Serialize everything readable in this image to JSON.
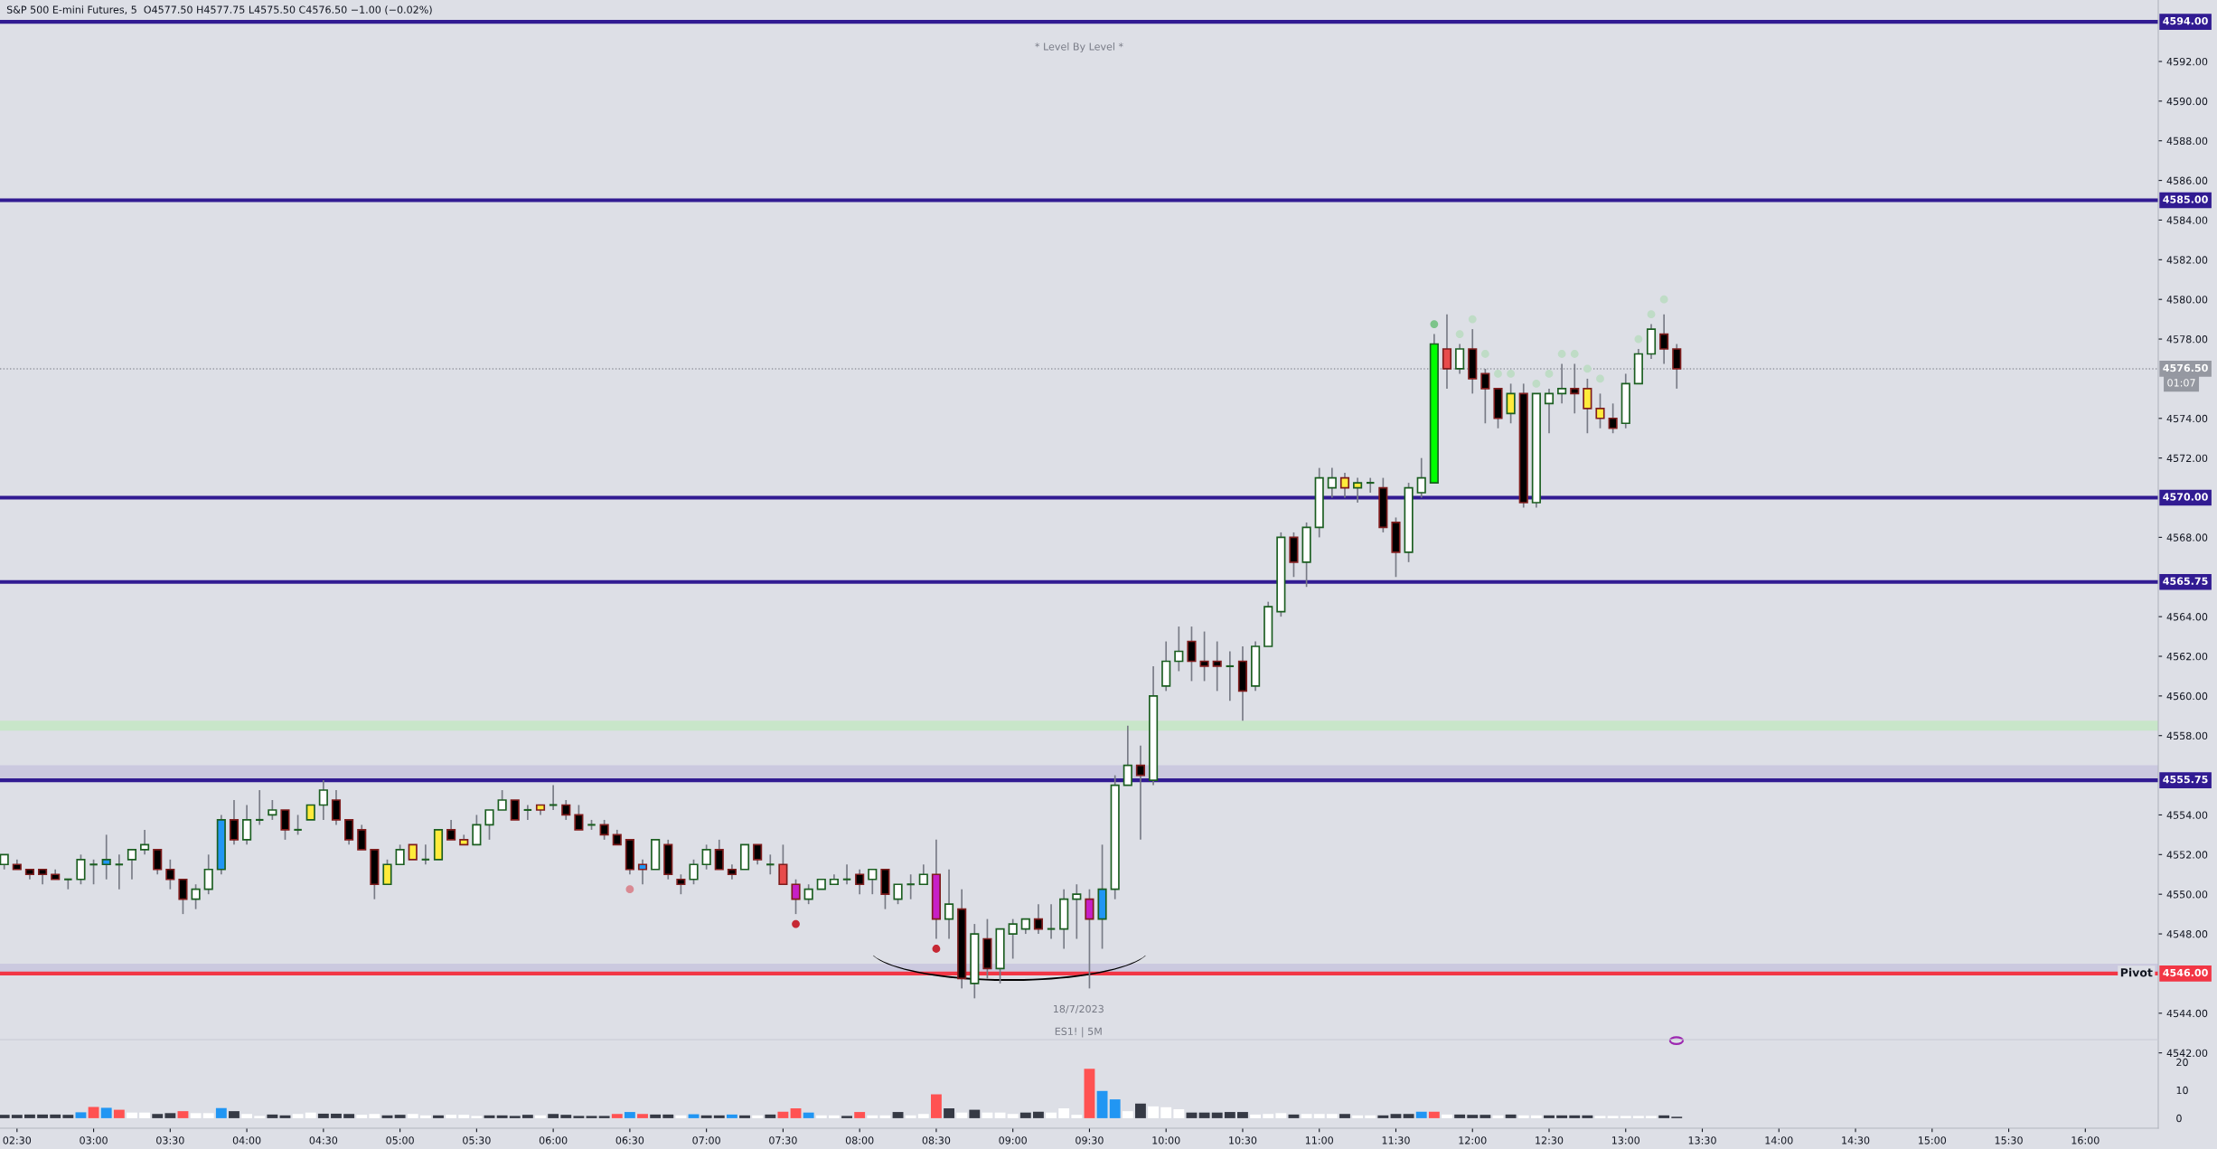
{
  "chart_data": [
    {
      "type": "candlestick",
      "subtitle": "* Level By Level *",
      "annotations": [
        "S&P 500 E-mini Futures, 5  O4577.50 H4577.75 L4575.50 C4576.50 −1.00 (−0.02%)",
        "18/7/2023",
        "ES1! | 5M",
        "01:07",
        {
          "text": "Pivot",
          "x": 16.44,
          "y": 4546
        }
      ],
      "x": [
        2.4167,
        2.5,
        2.5833,
        2.6667,
        2.75,
        2.8333,
        2.9167,
        3,
        3.0833,
        3.1667,
        3.25,
        3.3333,
        3.4167,
        3.5,
        3.5833,
        3.6667,
        3.75,
        3.8333,
        3.9167,
        4,
        4.0833,
        4.1667,
        4.25,
        4.3333,
        4.4167,
        4.5,
        4.5833,
        4.6667,
        4.75,
        4.8333,
        4.9167,
        5,
        5.0833,
        5.1667,
        5.25,
        5.3333,
        5.4167,
        5.5,
        5.5833,
        5.6667,
        5.75,
        5.8333,
        5.9167,
        6,
        6.0833,
        6.1667,
        6.25,
        6.3333,
        6.4167,
        6.5,
        6.5833,
        6.6667,
        6.75,
        6.8333,
        6.9167,
        7,
        7.0833,
        7.1667,
        7.25,
        7.3333,
        7.4167,
        7.5,
        7.5833,
        7.6667,
        7.75,
        7.8333,
        7.9167,
        8,
        8.0833,
        8.1667,
        8.25,
        8.3333,
        8.4167,
        8.5,
        8.5833,
        8.6667,
        8.75,
        8.8333,
        8.9167,
        9,
        9.0833,
        9.1667,
        9.25,
        9.3333,
        9.4167,
        9.5,
        9.5833,
        9.6667,
        9.75,
        9.8333,
        9.9167,
        10,
        10.0833,
        10.1667,
        10.25,
        10.3333,
        10.4167,
        10.5,
        10.5833,
        10.6667,
        10.75,
        10.8333,
        10.9167,
        11,
        11.0833,
        11.1667,
        11.25,
        11.3333,
        11.4167,
        11.5,
        11.5833,
        11.6667,
        11.75,
        11.8333,
        11.9167,
        12,
        12.0833,
        12.1667,
        12.25,
        12.3333,
        12.4167,
        12.5,
        12.5833,
        12.6667,
        12.75,
        12.8333,
        12.9167,
        13,
        13.0833,
        13.1667,
        13.25,
        13.3333
      ],
      "ohlc": [
        [
          4551.5,
          4552,
          4551.25,
          4552
        ],
        [
          4551.5,
          4551.75,
          4551.25,
          4551.25
        ],
        [
          4551.25,
          4551.25,
          4550.75,
          4551
        ],
        [
          4551.25,
          4551.25,
          4550.5,
          4551
        ],
        [
          4551,
          4551.25,
          4550.75,
          4550.75
        ],
        [
          4550.75,
          4550.75,
          4550.25,
          4550.75
        ],
        [
          4550.75,
          4552,
          4550.5,
          4551.75
        ],
        [
          4551.5,
          4551.75,
          4550.5,
          4551.5
        ],
        [
          4551.5,
          4553,
          4550.75,
          4551.75
        ],
        [
          4551.5,
          4552,
          4550.25,
          4551.5
        ],
        [
          4551.75,
          4552.25,
          4550.75,
          4552.25
        ],
        [
          4552.25,
          4553.25,
          4552,
          4552.5
        ],
        [
          4552.25,
          4552.25,
          4551,
          4551.25
        ],
        [
          4551.25,
          4551.75,
          4550.25,
          4550.75
        ],
        [
          4550.75,
          4550.75,
          4549,
          4549.75
        ],
        [
          4549.75,
          4550.5,
          4549.25,
          4550.25
        ],
        [
          4550.25,
          4552,
          4550,
          4551.25
        ],
        [
          4551.25,
          4554,
          4551,
          4553.75
        ],
        [
          4553.75,
          4554.75,
          4552.5,
          4552.75
        ],
        [
          4552.75,
          4554.5,
          4552.5,
          4553.75
        ],
        [
          4553.75,
          4555.25,
          4553.5,
          4553.75
        ],
        [
          4554,
          4554.75,
          4553.75,
          4554.25
        ],
        [
          4554.25,
          4554.25,
          4552.75,
          4553.25
        ],
        [
          4553.25,
          4554,
          4553,
          4553.25
        ],
        [
          4553.75,
          4554.5,
          4553.75,
          4554.5
        ],
        [
          4554.5,
          4555.75,
          4553.75,
          4555.25
        ],
        [
          4554.75,
          4555.25,
          4553.5,
          4553.75
        ],
        [
          4553.75,
          4553.75,
          4552.5,
          4552.75
        ],
        [
          4553.25,
          4553.5,
          4552.25,
          4552.25
        ],
        [
          4552.25,
          4552.25,
          4549.75,
          4550.5
        ],
        [
          4550.5,
          4551.75,
          4550.5,
          4551.5
        ],
        [
          4551.5,
          4552.5,
          4551.5,
          4552.25
        ],
        [
          4552.5,
          4552.5,
          4551.75,
          4551.75
        ],
        [
          4551.75,
          4552.5,
          4551.5,
          4551.75
        ],
        [
          4551.75,
          4553.25,
          4551.75,
          4553.25
        ],
        [
          4553.25,
          4553.75,
          4552.75,
          4552.75
        ],
        [
          4552.75,
          4553,
          4552.5,
          4552.5
        ],
        [
          4552.5,
          4554,
          4552.5,
          4553.5
        ],
        [
          4553.5,
          4554.25,
          4552.75,
          4554.25
        ],
        [
          4554.25,
          4555.25,
          4554.25,
          4554.75
        ],
        [
          4554.75,
          4554.75,
          4553.75,
          4553.75
        ],
        [
          4554.25,
          4554.5,
          4553.75,
          4554.25
        ],
        [
          4554.5,
          4554.5,
          4554,
          4554.25
        ],
        [
          4554.5,
          4555.5,
          4554.25,
          4554.5
        ],
        [
          4554.5,
          4554.75,
          4553.75,
          4554
        ],
        [
          4554,
          4554.5,
          4553.25,
          4553.25
        ],
        [
          4553.5,
          4553.75,
          4553.25,
          4553.5
        ],
        [
          4553.5,
          4553.75,
          4552.75,
          4553
        ],
        [
          4553,
          4553.25,
          4552.5,
          4552.5
        ],
        [
          4552.75,
          4552.75,
          4551,
          4551.25
        ],
        [
          4551.5,
          4551.75,
          4550.5,
          4551.25
        ],
        [
          4551.25,
          4552.75,
          4551.25,
          4552.75
        ],
        [
          4552.5,
          4552.75,
          4550.75,
          4551
        ],
        [
          4550.75,
          4551,
          4550,
          4550.5
        ],
        [
          4550.75,
          4551.75,
          4550.5,
          4551.5
        ],
        [
          4551.5,
          4552.5,
          4551.25,
          4552.25
        ],
        [
          4552.25,
          4552.75,
          4551.25,
          4551.25
        ],
        [
          4551.25,
          4551.5,
          4550.75,
          4551
        ],
        [
          4551.25,
          4552.5,
          4551.25,
          4552.5
        ],
        [
          4552.5,
          4552.5,
          4551.5,
          4551.75
        ],
        [
          4551.5,
          4552,
          4551,
          4551.5
        ],
        [
          4551.5,
          4552.5,
          4550.5,
          4550.5
        ],
        [
          4550.5,
          4550.75,
          4549,
          4549.75
        ],
        [
          4549.75,
          4550.5,
          4549.5,
          4550.25
        ],
        [
          4550.25,
          4550.75,
          4550.25,
          4550.75
        ],
        [
          4550.5,
          4551,
          4550.5,
          4550.75
        ],
        [
          4550.75,
          4551.5,
          4550.5,
          4550.75
        ],
        [
          4551,
          4551.25,
          4550,
          4550.5
        ],
        [
          4550.75,
          4551.25,
          4550,
          4551.25
        ],
        [
          4551.25,
          4551.25,
          4549.25,
          4550
        ],
        [
          4549.75,
          4550.5,
          4549.5,
          4550.5
        ],
        [
          4550.5,
          4551,
          4549.75,
          4550.5
        ],
        [
          4550.5,
          4551.5,
          4550.5,
          4551
        ],
        [
          4551,
          4552.75,
          4547.75,
          4548.75
        ],
        [
          4548.75,
          4551.25,
          4547.75,
          4549.5
        ],
        [
          4549.25,
          4550.25,
          4545.25,
          4545.75
        ],
        [
          4545.5,
          4548.5,
          4544.75,
          4548
        ],
        [
          4547.75,
          4548.75,
          4545.75,
          4546.25
        ],
        [
          4546.25,
          4548.25,
          4545.5,
          4548.25
        ],
        [
          4548,
          4548.75,
          4546.75,
          4548.5
        ],
        [
          4548.25,
          4548.75,
          4548,
          4548.75
        ],
        [
          4548.75,
          4549.5,
          4548,
          4548.25
        ],
        [
          4548.25,
          4549.5,
          4547.75,
          4548.25
        ],
        [
          4548.25,
          4550.25,
          4547.25,
          4549.75
        ],
        [
          4549.75,
          4550.5,
          4547.75,
          4550
        ],
        [
          4549.75,
          4550.25,
          4545.25,
          4548.75
        ],
        [
          4548.75,
          4552.5,
          4547.25,
          4550.25
        ],
        [
          4550.25,
          4556,
          4549.75,
          4555.5
        ],
        [
          4555.5,
          4558.5,
          4555.5,
          4556.5
        ],
        [
          4556.5,
          4557.5,
          4552.75,
          4556
        ],
        [
          4555.75,
          4561.5,
          4555.5,
          4560
        ],
        [
          4560.5,
          4562.75,
          4560.25,
          4561.75
        ],
        [
          4561.75,
          4563.5,
          4561.25,
          4562.25
        ],
        [
          4562.75,
          4563.5,
          4560.75,
          4561.75
        ],
        [
          4561.75,
          4563.25,
          4560.75,
          4561.5
        ],
        [
          4561.75,
          4562.75,
          4560.25,
          4561.5
        ],
        [
          4561.5,
          4562.25,
          4559.75,
          4561.5
        ],
        [
          4561.75,
          4562.5,
          4558.75,
          4560.25
        ],
        [
          4560.5,
          4562.75,
          4560.25,
          4562.5
        ],
        [
          4562.5,
          4564.75,
          4562.5,
          4564.5
        ],
        [
          4564.25,
          4568.25,
          4564,
          4568
        ],
        [
          4568,
          4568.25,
          4566,
          4566.75
        ],
        [
          4566.75,
          4568.75,
          4565.5,
          4568.5
        ],
        [
          4568.5,
          4571.5,
          4568,
          4571
        ],
        [
          4570.5,
          4571.5,
          4570,
          4571
        ],
        [
          4571,
          4571.25,
          4570,
          4570.5
        ],
        [
          4570.5,
          4571,
          4569.75,
          4570.75
        ],
        [
          4570.75,
          4571,
          4570.25,
          4570.75
        ],
        [
          4570.5,
          4571,
          4568.25,
          4568.5
        ],
        [
          4568.75,
          4569,
          4566,
          4567.25
        ],
        [
          4567.25,
          4570.75,
          4566.75,
          4570.5
        ],
        [
          4570.25,
          4572,
          4570,
          4571
        ],
        [
          4570.75,
          4578.25,
          4570.75,
          4577.75
        ],
        [
          4577.5,
          4579.25,
          4575.5,
          4576.5
        ],
        [
          4576.5,
          4577.75,
          4576.25,
          4577.5
        ],
        [
          4577.5,
          4578.5,
          4575.25,
          4576
        ],
        [
          4576.25,
          4576.5,
          4573.75,
          4575.5
        ],
        [
          4575.5,
          4575.5,
          4573.5,
          4574
        ],
        [
          4574.25,
          4575.75,
          4573.75,
          4575.25
        ],
        [
          4575.25,
          4575.75,
          4569.5,
          4569.75
        ],
        [
          4569.75,
          4575.25,
          4569.5,
          4575.25
        ],
        [
          4574.75,
          4575.5,
          4573.25,
          4575.25
        ],
        [
          4575.25,
          4576.75,
          4574.75,
          4575.5
        ],
        [
          4575.5,
          4576.75,
          4574.25,
          4575.25
        ],
        [
          4575.5,
          4576,
          4573.25,
          4574.5
        ],
        [
          4574.5,
          4575.25,
          4573.5,
          4574
        ],
        [
          4574,
          4574.75,
          4573.25,
          4573.5
        ],
        [
          4573.75,
          4576.25,
          4573.5,
          4575.75
        ],
        [
          4575.75,
          4577.5,
          4575.75,
          4577.25
        ],
        [
          4577.25,
          4578.75,
          4577,
          4578.5
        ],
        [
          4578.25,
          4579.25,
          4576.75,
          4577.5
        ],
        [
          4577.5,
          4577.75,
          4575.5,
          4576.5
        ]
      ],
      "colors": [
        "#ffffff",
        "#000000",
        "#000000",
        "#000000",
        "#000000",
        "#1b5e20",
        "#ffffff",
        "#1b5e20",
        "#2196f3",
        "#1b5e20",
        "#ffffff",
        "#ffffff",
        "#000000",
        "#000000",
        "#000000",
        "#ffffff",
        "#ffffff",
        "#2196f3",
        "#000000",
        "#ffffff",
        "#1b5e20",
        "#ffffff",
        "#000000",
        "#1b5e20",
        "#ffeb3b",
        "#ffffff",
        "#000000",
        "#000000",
        "#000000",
        "#000000",
        "#ffeb3b",
        "#ffffff",
        "#ffeb3b",
        "#1b5e20",
        "#ffeb3b",
        "#000000",
        "#ffeb3b",
        "#ffffff",
        "#ffffff",
        "#ffffff",
        "#000000",
        "#1b5e20",
        "#ffeb3b",
        "#1b5e20",
        "#000000",
        "#000000",
        "#1b5e20",
        "#000000",
        "#000000",
        "#000000",
        "#2196f3",
        "#ffffff",
        "#000000",
        "#000000",
        "#ffffff",
        "#ffffff",
        "#000000",
        "#000000",
        "#ffffff",
        "#000000",
        "#1b5e20",
        "#e84b4b",
        "#c71fc7",
        "#ffffff",
        "#ffffff",
        "#ffffff",
        "#1b5e20",
        "#000000",
        "#ffffff",
        "#000000",
        "#ffffff",
        "#1b5e20",
        "#ffffff",
        "#c71fc7",
        "#ffffff",
        "#000000",
        "#ffffff",
        "#000000",
        "#ffffff",
        "#ffffff",
        "#ffffff",
        "#000000",
        "#1b5e20",
        "#ffffff",
        "#ffffff",
        "#c71fc7",
        "#2196f3",
        "#ffffff",
        "#ffffff",
        "#000000",
        "#ffffff",
        "#ffffff",
        "#ffffff",
        "#000000",
        "#000000",
        "#000000",
        "#1b5e20",
        "#000000",
        "#ffffff",
        "#ffffff",
        "#ffffff",
        "#000000",
        "#ffffff",
        "#ffffff",
        "#ffffff",
        "#ffeb3b",
        "#ffeb3b",
        "#1b5e20",
        "#000000",
        "#000000",
        "#ffffff",
        "#ffffff",
        "#00ff00",
        "#e84b4b",
        "#ffffff",
        "#000000",
        "#000000",
        "#000000",
        "#ffeb3b",
        "#000000",
        "#ffffff",
        "#ffffff",
        "#ffffff",
        "#000000",
        "#ffeb3b",
        "#ffeb3b",
        "#000000",
        "#ffffff",
        "#ffffff",
        "#ffffff",
        "#000000",
        "#000000"
      ],
      "series": [
        {
          "type": "scatter",
          "marker": "circle",
          "x": [
            11.75,
            11.9167,
            12,
            12.0833,
            12.1667,
            12.25,
            12.4167,
            12.5,
            12.5833,
            12.6667,
            12.75,
            12.8333,
            13.0833,
            13.1667,
            13.25
          ],
          "values": [
            4578.75,
            4578.25,
            4579,
            4577.25,
            4576.25,
            4576.25,
            4575.75,
            4576.25,
            4577.25,
            4577.25,
            4576.5,
            4576,
            4578,
            4579.25,
            4580
          ],
          "colors": [
            "#7cc48a",
            "#bfdcc6",
            "#bfdcc6",
            "#bfdcc6",
            "#bfdcc6",
            "#bfdcc6",
            "#bfdcc6",
            "#bfdcc6",
            "#bfdcc6",
            "#bfdcc6",
            "#bfdcc6",
            "#bfdcc6",
            "#bfdcc6",
            "#bfdcc6",
            "#bfdcc6"
          ]
        },
        {
          "type": "scatter",
          "marker": "circle",
          "x": [
            6.5,
            7.5833,
            8.5
          ],
          "values": [
            4550.25,
            4548.5,
            4547.25
          ],
          "colors": [
            "#d98a93",
            "#c62834",
            "#c62834"
          ]
        }
      ],
      "ref_lines": [
        {
          "axis": "y",
          "value": 4594,
          "color": "#311b92",
          "label": "4594.00"
        },
        {
          "axis": "y",
          "value": 4585,
          "color": "#311b92",
          "label": "4585.00"
        },
        {
          "axis": "y",
          "value": 4570,
          "color": "#311b92",
          "label": "4570.00"
        },
        {
          "axis": "y",
          "value": 4565.75,
          "color": "#311b92",
          "label": "4565.75"
        },
        {
          "axis": "y",
          "value": 4555.75,
          "color": "#311b92",
          "label": "4555.75"
        },
        {
          "axis": "y",
          "value": 4546,
          "color": "#f23645",
          "label": "4546.00"
        },
        {
          "axis": "y",
          "value": 4576.5,
          "color": "#9598a1",
          "line_style": "dotted",
          "label": "4576.50"
        }
      ],
      "bands": [
        {
          "axis": "y",
          "from": 4558.25,
          "to": 4558.75,
          "color": "#c8e6c9"
        },
        {
          "axis": "y",
          "from": 4555.75,
          "to": 4556.5,
          "color": "#cbc9df"
        },
        {
          "axis": "y",
          "from": 4546,
          "to": 4546.5,
          "color": "#cbc9df"
        }
      ],
      "xlim": [
        2.389,
        16.476
      ],
      "xticks": [
        {
          "value": 2.5,
          "label": "02:30"
        },
        {
          "value": 3,
          "label": "03:00"
        },
        {
          "value": 3.5,
          "label": "03:30"
        },
        {
          "value": 4,
          "label": "04:00"
        },
        {
          "value": 4.5,
          "label": "04:30"
        },
        {
          "value": 5,
          "label": "05:00"
        },
        {
          "value": 5.5,
          "label": "05:30"
        },
        {
          "value": 6,
          "label": "06:00"
        },
        {
          "value": 6.5,
          "label": "06:30"
        },
        {
          "value": 7,
          "label": "07:00"
        },
        {
          "value": 7.5,
          "label": "07:30"
        },
        {
          "value": 8,
          "label": "08:00"
        },
        {
          "value": 8.5,
          "label": "08:30"
        },
        {
          "value": 9,
          "label": "09:00"
        },
        {
          "value": 9.5,
          "label": "09:30"
        },
        {
          "value": 10,
          "label": "10:00"
        },
        {
          "value": 10.5,
          "label": "10:30"
        },
        {
          "value": 11,
          "label": "11:00"
        },
        {
          "value": 11.5,
          "label": "11:30"
        },
        {
          "value": 12,
          "label": "12:00"
        },
        {
          "value": 12.5,
          "label": "12:30"
        },
        {
          "value": 13,
          "label": "13:00"
        },
        {
          "value": 13.5,
          "label": "13:30"
        },
        {
          "value": 14,
          "label": "14:00"
        },
        {
          "value": 14.5,
          "label": "14:30"
        },
        {
          "value": 15,
          "label": "15:00"
        },
        {
          "value": 15.5,
          "label": "15:30"
        },
        {
          "value": 16,
          "label": "16:00"
        }
      ],
      "ylim": [
        4538.2,
        4595.1
      ],
      "yticks": [
        {
          "value": 4542,
          "label": "4542.00"
        },
        {
          "value": 4544,
          "label": "4544.00"
        },
        {
          "value": 4548,
          "label": "4548.00"
        },
        {
          "value": 4550,
          "label": "4550.00"
        },
        {
          "value": 4552,
          "label": "4552.00"
        },
        {
          "value": 4554,
          "label": "4554.00"
        },
        {
          "value": 4558,
          "label": "4558.00"
        },
        {
          "value": 4560,
          "label": "4560.00"
        },
        {
          "value": 4562,
          "label": "4562.00"
        },
        {
          "value": 4564,
          "label": "4564.00"
        },
        {
          "value": 4568,
          "label": "4568.00"
        },
        {
          "value": 4572,
          "label": "4572.00"
        },
        {
          "value": 4574,
          "label": "4574.00"
        },
        {
          "value": 4578,
          "label": "4578.00"
        },
        {
          "value": 4580,
          "label": "4580.00"
        },
        {
          "value": 4582,
          "label": "4582.00"
        },
        {
          "value": 4584,
          "label": "4584.00"
        },
        {
          "value": 4586,
          "label": "4586.00"
        },
        {
          "value": 4588,
          "label": "4588.00"
        },
        {
          "value": 4590,
          "label": "4590.00"
        },
        {
          "value": 4592,
          "label": "4592.00"
        }
      ]
    },
    {
      "type": "bar",
      "tick_labels": "y",
      "x": [
        2.4167,
        2.5,
        2.5833,
        2.6667,
        2.75,
        2.8333,
        2.9167,
        3,
        3.0833,
        3.1667,
        3.25,
        3.3333,
        3.4167,
        3.5,
        3.5833,
        3.6667,
        3.75,
        3.8333,
        3.9167,
        4,
        4.0833,
        4.1667,
        4.25,
        4.3333,
        4.4167,
        4.5,
        4.5833,
        4.6667,
        4.75,
        4.8333,
        4.9167,
        5,
        5.0833,
        5.1667,
        5.25,
        5.3333,
        5.4167,
        5.5,
        5.5833,
        5.6667,
        5.75,
        5.8333,
        5.9167,
        6,
        6.0833,
        6.1667,
        6.25,
        6.3333,
        6.4167,
        6.5,
        6.5833,
        6.6667,
        6.75,
        6.8333,
        6.9167,
        7,
        7.0833,
        7.1667,
        7.25,
        7.3333,
        7.4167,
        7.5,
        7.5833,
        7.6667,
        7.75,
        7.8333,
        7.9167,
        8,
        8.0833,
        8.1667,
        8.25,
        8.3333,
        8.4167,
        8.5,
        8.5833,
        8.6667,
        8.75,
        8.8333,
        8.9167,
        9,
        9.0833,
        9.1667,
        9.25,
        9.3333,
        9.4167,
        9.5,
        9.5833,
        9.6667,
        9.75,
        9.8333,
        9.9167,
        10,
        10.0833,
        10.1667,
        10.25,
        10.3333,
        10.4167,
        10.5,
        10.5833,
        10.6667,
        10.75,
        10.8333,
        10.9167,
        11,
        11.0833,
        11.1667,
        11.25,
        11.3333,
        11.4167,
        11.5,
        11.5833,
        11.6667,
        11.75,
        11.8333,
        11.9167,
        12,
        12.0833,
        12.1667,
        12.25,
        12.3333,
        12.4167,
        12.5,
        12.5833,
        12.6667,
        12.75,
        12.8333,
        12.9167,
        13,
        13.0833,
        13.1667,
        13.25,
        13.3333
      ],
      "values": [
        1.2,
        1.2,
        1.3,
        1.3,
        1.3,
        1.2,
        2.1,
        4,
        3.7,
        3,
        2,
        2,
        1.5,
        1.8,
        2.5,
        1.8,
        1.8,
        3.6,
        2.5,
        1.5,
        0.8,
        1.3,
        1,
        1.5,
        2,
        1.6,
        1.6,
        1.5,
        1.2,
        1.5,
        1,
        1.2,
        1.5,
        1,
        1,
        1.2,
        1.2,
        0.8,
        1,
        1,
        0.8,
        1.2,
        1,
        1.5,
        1.2,
        0.8,
        0.8,
        0.8,
        1.5,
        2.2,
        1.5,
        1.3,
        1.3,
        1,
        1.4,
        1,
        1,
        1.3,
        1,
        1,
        1.3,
        2.3,
        3.5,
        2,
        1,
        1,
        0.8,
        2.2,
        1,
        1,
        2.2,
        1,
        1.5,
        8.5,
        3.5,
        2,
        3,
        2,
        2,
        1.5,
        2,
        2.3,
        2,
        3.5,
        1.2,
        17.6,
        9.7,
        6.7,
        2.5,
        5.2,
        4.2,
        3.9,
        3.2,
        2,
        2,
        2,
        2.2,
        2.2,
        1.3,
        1.5,
        1.8,
        1.3,
        1.5,
        1.5,
        1.5,
        1.5,
        1,
        1,
        1,
        1.5,
        1.5,
        2.3,
        2.3,
        1.3,
        1.3,
        1.2,
        1.2,
        1,
        1.3,
        1,
        1,
        1,
        1,
        1,
        1,
        0.8,
        0.8,
        0.8,
        0.8,
        0.8,
        1,
        0.5
      ],
      "colors": [
        "#363a45",
        "#363a45",
        "#363a45",
        "#363a45",
        "#363a45",
        "#363a45",
        "#2196f3",
        "#ff5252",
        "#2196f3",
        "#ff5252",
        "#ffffff",
        "#ffffff",
        "#363a45",
        "#363a45",
        "#ff5252",
        "#ffffff",
        "#ffffff",
        "#2196f3",
        "#363a45",
        "#ffffff",
        "#ffffff",
        "#363a45",
        "#363a45",
        "#ffffff",
        "#ffffff",
        "#363a45",
        "#363a45",
        "#363a45",
        "#ffffff",
        "#ffffff",
        "#363a45",
        "#363a45",
        "#ffffff",
        "#ffffff",
        "#363a45",
        "#ffffff",
        "#ffffff",
        "#ffffff",
        "#363a45",
        "#363a45",
        "#363a45",
        "#363a45",
        "#ffffff",
        "#363a45",
        "#363a45",
        "#363a45",
        "#363a45",
        "#363a45",
        "#ff5252",
        "#2196f3",
        "#ff5252",
        "#363a45",
        "#363a45",
        "#ffffff",
        "#2196f3",
        "#363a45",
        "#363a45",
        "#2196f3",
        "#363a45",
        "#ffffff",
        "#363a45",
        "#ff5252",
        "#ff5252",
        "#2196f3",
        "#ffffff",
        "#ffffff",
        "#363a45",
        "#ff5252",
        "#ffffff",
        "#ffffff",
        "#363a45",
        "#ffffff",
        "#ffffff",
        "#ff5252",
        "#363a45",
        "#ffffff",
        "#363a45",
        "#ffffff",
        "#ffffff",
        "#ffffff",
        "#363a45",
        "#363a45",
        "#ffffff",
        "#ffffff",
        "#ffffff",
        "#ff5252",
        "#2196f3",
        "#2196f3",
        "#ffffff",
        "#363a45",
        "#ffffff",
        "#ffffff",
        "#ffffff",
        "#363a45",
        "#363a45",
        "#363a45",
        "#363a45",
        "#363a45",
        "#ffffff",
        "#ffffff",
        "#ffffff",
        "#363a45",
        "#ffffff",
        "#ffffff",
        "#ffffff",
        "#363a45",
        "#ffffff",
        "#ffffff",
        "#363a45",
        "#363a45",
        "#363a45",
        "#2196f3",
        "#ff5252",
        "#ffffff",
        "#363a45",
        "#363a45",
        "#363a45",
        "#ffffff",
        "#363a45",
        "#ffffff",
        "#ffffff",
        "#363a45",
        "#363a45",
        "#363a45",
        "#363a45",
        "#ffffff",
        "#ffffff",
        "#ffffff",
        "#ffffff",
        "#ffffff",
        "#363a45",
        "#363a45"
      ],
      "xlim": [
        2.389,
        16.476
      ],
      "ylim": [
        -1,
        28
      ],
      "yticks": [
        0,
        10,
        20
      ]
    }
  ]
}
